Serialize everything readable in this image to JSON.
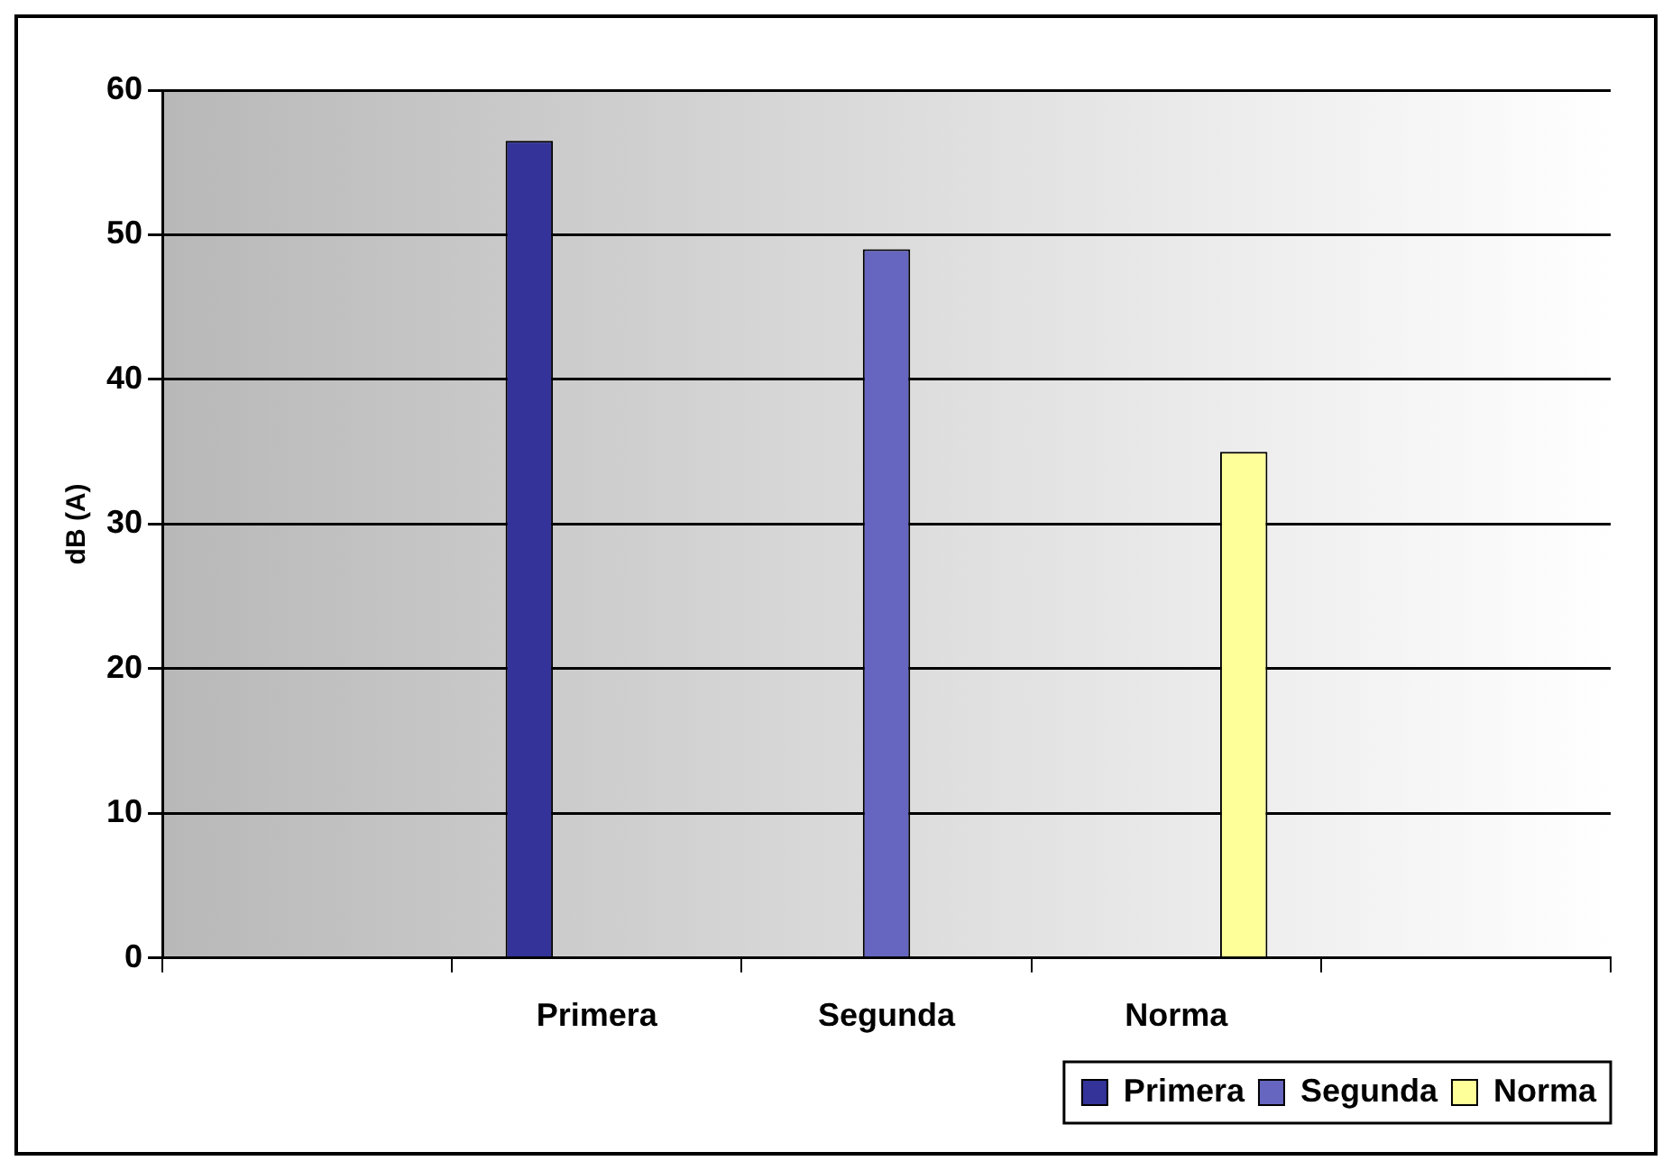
{
  "chart_data": {
    "type": "bar",
    "ylabel": "dB (A)",
    "categories": [
      null,
      "Primera",
      "Segunda",
      "Norma",
      null
    ],
    "series": [
      {
        "name": "Primera",
        "color": "#333399",
        "values": [
          null,
          56.5,
          null,
          null,
          null
        ]
      },
      {
        "name": "Segunda",
        "color": "#6666c0",
        "values": [
          null,
          null,
          49,
          null,
          null
        ]
      },
      {
        "name": "Norma",
        "color": "#ffff99",
        "values": [
          null,
          null,
          null,
          35,
          null
        ]
      }
    ],
    "ylim": [
      0,
      60
    ],
    "yticks": [
      0,
      10,
      20,
      30,
      40,
      50,
      60
    ],
    "grid": "y",
    "legend": "bottom right"
  }
}
